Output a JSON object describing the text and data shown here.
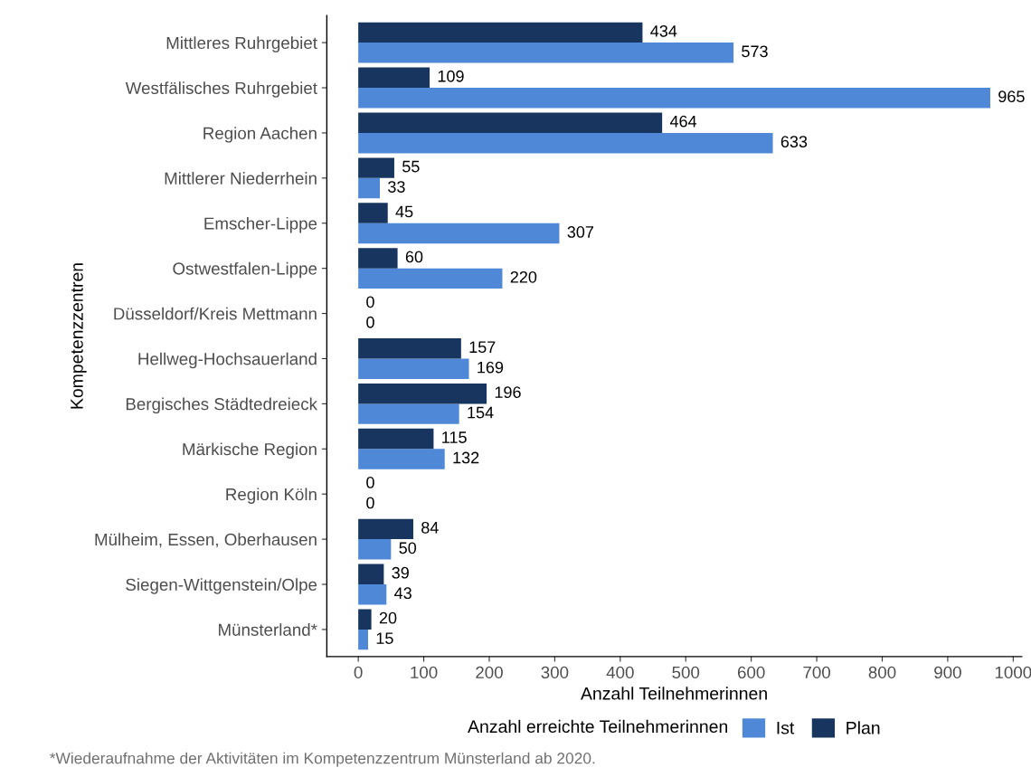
{
  "chart_data": {
    "type": "bar",
    "orientation": "horizontal",
    "xlabel": "Anzahl Teilnehmerinnen",
    "ylabel": "Kompetenzzentren",
    "legend_title": "Anzahl erreichte Teilnehmerinnen",
    "categories": [
      "Mittleres Ruhrgebiet",
      "Westfälisches Ruhrgebiet",
      "Region Aachen",
      "Mittlerer Niederrhein",
      "Emscher-Lippe",
      "Ostwestfalen-Lippe",
      "Düsseldorf/Kreis Mettmann",
      "Hellweg-Hochsauerland",
      "Bergisches Städtedreieck",
      "Märkische Region",
      "Region Köln",
      "Mülheim, Essen, Oberhausen",
      "Siegen-Wittgenstein/Olpe",
      "Münsterland*"
    ],
    "series": [
      {
        "name": "Ist",
        "color": "#5088d8",
        "values": [
          573,
          965,
          633,
          33,
          307,
          220,
          0,
          169,
          154,
          132,
          0,
          50,
          43,
          15
        ]
      },
      {
        "name": "Plan",
        "color": "#17355f",
        "values": [
          434,
          109,
          464,
          55,
          45,
          60,
          0,
          157,
          196,
          115,
          0,
          84,
          39,
          20
        ]
      }
    ],
    "xlim": [
      -48,
      1013
    ],
    "xticks": [
      0,
      100,
      200,
      300,
      400,
      500,
      600,
      700,
      800,
      900,
      1000
    ],
    "data_labels": true,
    "grid": false,
    "legend": "bottom",
    "annotations": [
      "*Wiederaufnahme der Aktivitäten im Kompetenzzentrum Münsterland ab 2020."
    ]
  }
}
